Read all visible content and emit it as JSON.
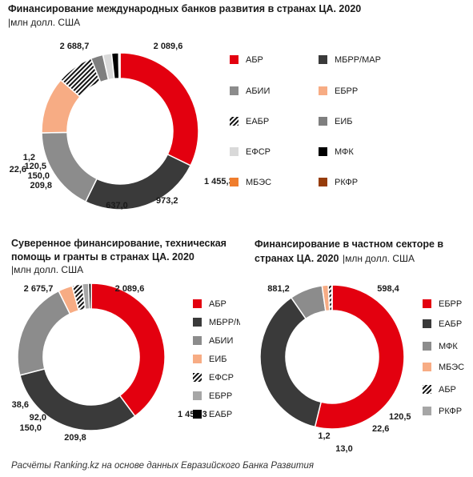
{
  "chart_data": [
    {
      "type": "pie",
      "title": "Финансирование международных банков развития  в странах ЦА. 2020",
      "unit": "млн долл. США",
      "categories": [
        "АБР",
        "МБРР/МАР",
        "АБИИ",
        "ЕБРР",
        "ЕАБР",
        "ЕИБ",
        "ЕФСР",
        "МФК",
        "МБЭС",
        "РКФР"
      ],
      "values": [
        2688.7,
        2089.6,
        1455.3,
        973.2,
        637.0,
        209.8,
        150.0,
        120.5,
        22.6,
        1.2
      ],
      "slice_order": [
        "АБР",
        "МБРР/МАР",
        "АБИИ",
        "ЕБРР",
        "ЕАБР",
        "ЕИБ",
        "ЕФСР",
        "МФК",
        "МБЭС",
        "РКФР"
      ],
      "value_labels": [
        "2 688,7",
        "2 089,6",
        "1 455,3",
        "973,2",
        "637,0",
        "209,8",
        "150,0",
        "120,5",
        "22,6",
        "1,2"
      ],
      "colors": [
        "#e3000f",
        "#3a3a3a",
        "#8c8c8c",
        "#f7ac84",
        "hatch",
        "#7f7f7f",
        "#d9d9d9",
        "#000000",
        "#ef7d2d",
        "#963c0a"
      ],
      "legend": [
        "АБР",
        "МБРР/МАР",
        "АБИИ",
        "ЕБРР",
        "ЕАБР",
        "ЕИБ",
        "ЕФСР",
        "МФК",
        "МБЭС",
        "РКФР"
      ],
      "legend_colors": [
        "#e3000f",
        "#3a3a3a",
        "#8c8c8c",
        "#f7ac84",
        "hatch",
        "#7f7f7f",
        "#d9d9d9",
        "#000000",
        "#ef7d2d",
        "#963c0a"
      ],
      "legend_placement": "right"
    },
    {
      "type": "pie",
      "title": "Суверенное финансирование,  техническая помощь и гранты в странах ЦА. 2020",
      "unit": "млн долл. США",
      "categories": [
        "АБР",
        "МБРР/МАР",
        "АБИИ",
        "ЕИБ",
        "ЕФСР",
        "ЕБРР",
        "ЕАБР"
      ],
      "values": [
        2675.7,
        2089.6,
        1455.3,
        209.8,
        150.0,
        92.0,
        38.6
      ],
      "value_labels": [
        "2 675,7",
        "2 089,6",
        "1 455,3",
        "209,8",
        "150,0",
        "92,0",
        "38,6"
      ],
      "colors": [
        "#e3000f",
        "#3a3a3a",
        "#8c8c8c",
        "#f7ac84",
        "hatch",
        "#a6a6a6",
        "#000000"
      ],
      "legend": [
        "АБР",
        "МБРР/МАР",
        "АБИИ",
        "ЕИБ",
        "ЕФСР",
        "ЕБРР",
        "ЕАБР"
      ],
      "legend_colors": [
        "#e3000f",
        "#3a3a3a",
        "#8c8c8c",
        "#f7ac84",
        "hatch",
        "#a6a6a6",
        "#000000"
      ],
      "legend_placement": "right"
    },
    {
      "type": "pie",
      "title": "Финансирование  в частном  секторе в странах ЦА. 2020",
      "unit": "млн долл. США",
      "categories": [
        "ЕБРР",
        "ЕАБР",
        "МФК",
        "МБЭС",
        "АБР",
        "РКФР"
      ],
      "values": [
        881.2,
        598.4,
        120.5,
        22.6,
        13.0,
        1.2
      ],
      "value_labels": [
        "881,2",
        "598,4",
        "120,5",
        "22,6",
        "13,0",
        "1,2"
      ],
      "colors": [
        "#e3000f",
        "#3a3a3a",
        "#8c8c8c",
        "#f7ac84",
        "hatch",
        "#a6a6a6"
      ],
      "legend": [
        "ЕБРР",
        "ЕАБР",
        "МФК",
        "МБЭС",
        "АБР",
        "РКФР"
      ],
      "legend_colors": [
        "#e3000f",
        "#3a3a3a",
        "#8c8c8c",
        "#f7ac84",
        "hatch",
        "#a6a6a6"
      ],
      "legend_placement": "right"
    }
  ],
  "footer": "Расчёты Ranking.kz на основе данных Евразийского Банка Развития"
}
